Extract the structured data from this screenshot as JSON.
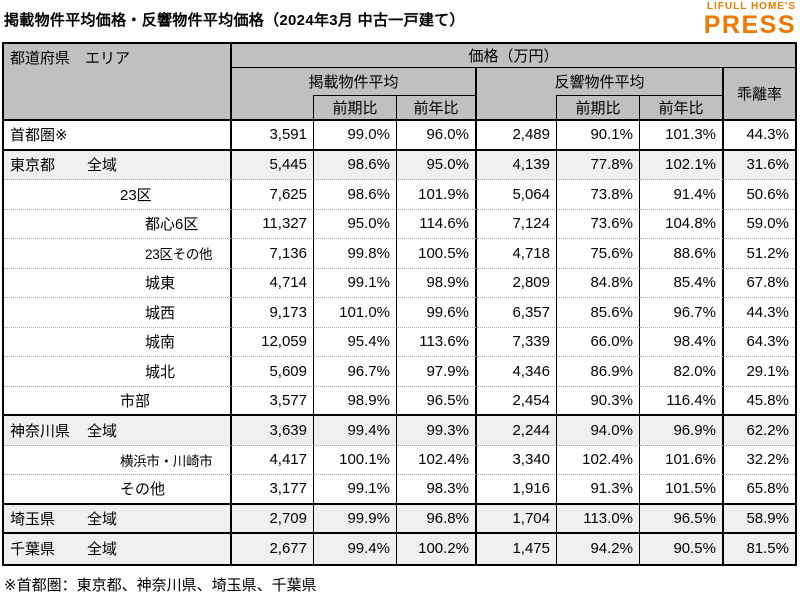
{
  "page": {
    "title": "掲載物件平均価格・反響物件平均価格（2024年3月 中古一戸建て）",
    "footnote": "※首都圏：東京都、神奈川県、埼玉県、千葉県"
  },
  "logo": {
    "top": "LIFULL HOME'S",
    "bottom": "PRESS"
  },
  "colors": {
    "brand_orange": "#EE7800",
    "header_bg": "#C0C0C0",
    "row_tint": "#EFEFEF"
  },
  "table": {
    "corner_header": "都道府県　エリア",
    "price_header": "価格（万円）",
    "group_listed": "掲載物件平均",
    "group_inquiry": "反響物件平均",
    "deviation_header": "乖離率",
    "sub_prev_period": "前期比",
    "sub_prev_year": "前年比",
    "rows": [
      {
        "pref": "首都圏※",
        "area": "",
        "indent": 0,
        "shrink": false,
        "tint": false,
        "sep": true,
        "values": [
          "3,591",
          "99.0%",
          "96.0%",
          "2,489",
          "90.1%",
          "101.3%",
          "44.3%"
        ]
      },
      {
        "pref": "東京都",
        "area": "全域",
        "indent": 1,
        "shrink": false,
        "tint": true,
        "sep": false,
        "values": [
          "5,445",
          "98.6%",
          "95.0%",
          "4,139",
          "77.8%",
          "102.1%",
          "31.6%"
        ]
      },
      {
        "pref": "",
        "area": "23区",
        "indent": 2,
        "shrink": false,
        "tint": false,
        "sep": false,
        "values": [
          "7,625",
          "98.6%",
          "101.9%",
          "5,064",
          "73.8%",
          "91.4%",
          "50.6%"
        ]
      },
      {
        "pref": "",
        "area": "都心6区",
        "indent": 3,
        "shrink": false,
        "tint": false,
        "sep": false,
        "values": [
          "11,327",
          "95.0%",
          "114.6%",
          "7,124",
          "73.6%",
          "104.8%",
          "59.0%"
        ]
      },
      {
        "pref": "",
        "area": "23区その他",
        "indent": 3,
        "shrink": true,
        "tint": false,
        "sep": false,
        "values": [
          "7,136",
          "99.8%",
          "100.5%",
          "4,718",
          "75.6%",
          "88.6%",
          "51.2%"
        ]
      },
      {
        "pref": "",
        "area": "城東",
        "indent": 3,
        "shrink": false,
        "tint": false,
        "sep": false,
        "values": [
          "4,714",
          "99.1%",
          "98.9%",
          "2,809",
          "84.8%",
          "85.4%",
          "67.8%"
        ]
      },
      {
        "pref": "",
        "area": "城西",
        "indent": 3,
        "shrink": false,
        "tint": false,
        "sep": false,
        "values": [
          "9,173",
          "101.0%",
          "99.6%",
          "6,357",
          "85.6%",
          "96.7%",
          "44.3%"
        ]
      },
      {
        "pref": "",
        "area": "城南",
        "indent": 3,
        "shrink": false,
        "tint": false,
        "sep": false,
        "values": [
          "12,059",
          "95.4%",
          "113.6%",
          "7,339",
          "66.0%",
          "98.4%",
          "64.3%"
        ]
      },
      {
        "pref": "",
        "area": "城北",
        "indent": 3,
        "shrink": false,
        "tint": false,
        "sep": false,
        "values": [
          "5,609",
          "96.7%",
          "97.9%",
          "4,346",
          "86.9%",
          "82.0%",
          "29.1%"
        ]
      },
      {
        "pref": "",
        "area": "市部",
        "indent": 2,
        "shrink": false,
        "tint": false,
        "sep": true,
        "values": [
          "3,577",
          "98.9%",
          "96.5%",
          "2,454",
          "90.3%",
          "116.4%",
          "45.8%"
        ]
      },
      {
        "pref": "神奈川県",
        "area": "全域",
        "indent": 1,
        "shrink": false,
        "tint": true,
        "sep": false,
        "values": [
          "3,639",
          "99.4%",
          "99.3%",
          "2,244",
          "94.0%",
          "96.9%",
          "62.2%"
        ]
      },
      {
        "pref": "",
        "area": "横浜市・川崎市",
        "indent": 2,
        "shrink": true,
        "tint": false,
        "sep": false,
        "values": [
          "4,417",
          "100.1%",
          "102.4%",
          "3,340",
          "102.4%",
          "101.6%",
          "32.2%"
        ]
      },
      {
        "pref": "",
        "area": "その他",
        "indent": 2,
        "shrink": false,
        "tint": false,
        "sep": true,
        "values": [
          "3,177",
          "99.1%",
          "98.3%",
          "1,916",
          "91.3%",
          "101.5%",
          "65.8%"
        ]
      },
      {
        "pref": "埼玉県",
        "area": "全域",
        "indent": 1,
        "shrink": false,
        "tint": true,
        "sep": true,
        "values": [
          "2,709",
          "99.9%",
          "96.8%",
          "1,704",
          "113.0%",
          "96.5%",
          "58.9%"
        ]
      },
      {
        "pref": "千葉県",
        "area": "全域",
        "indent": 1,
        "shrink": false,
        "tint": true,
        "sep": false,
        "values": [
          "2,677",
          "99.4%",
          "100.2%",
          "1,475",
          "94.2%",
          "90.5%",
          "81.5%"
        ]
      }
    ]
  }
}
